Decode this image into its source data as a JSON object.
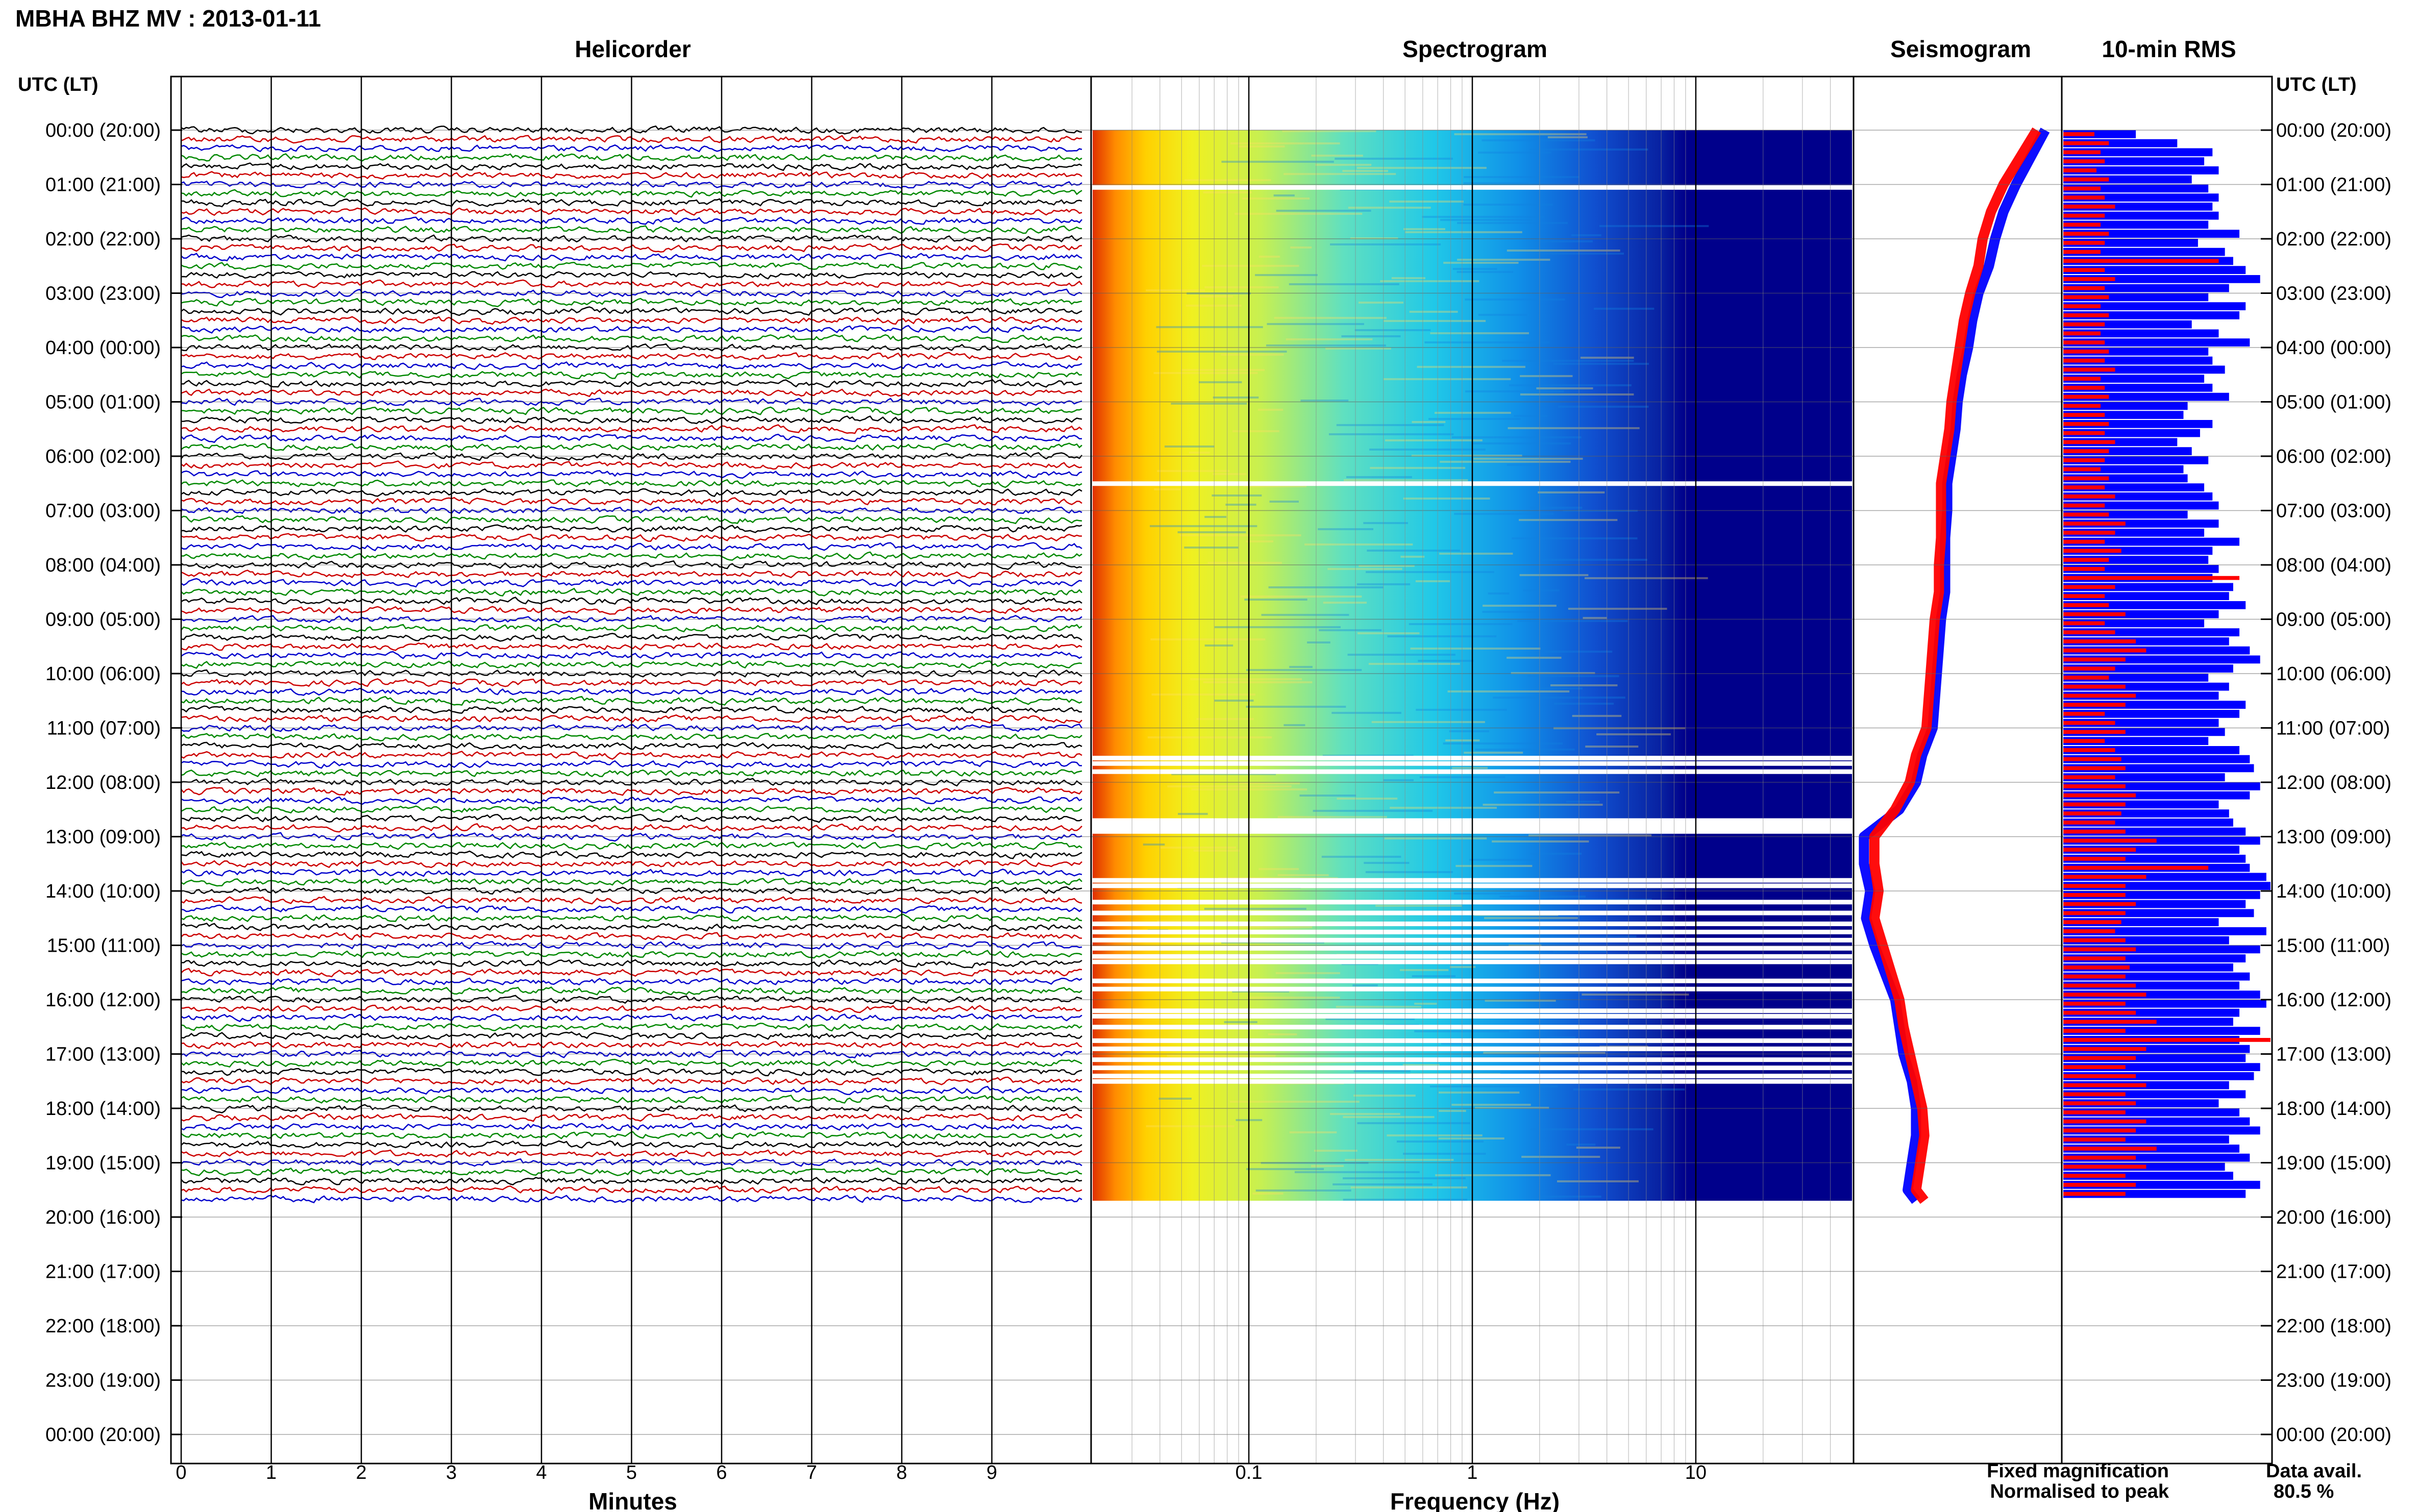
{
  "header": {
    "title": "MBHA BHZ MV : 2013-01-11"
  },
  "panels": {
    "helicorder": "Helicorder",
    "spectrogram": "Spectrogram",
    "seismogram": "Seismogram",
    "rms": "10-min RMS",
    "axis_left": "UTC (LT)",
    "axis_right": "UTC (LT)"
  },
  "hour_labels": [
    "00:00 (20:00)",
    "01:00 (21:00)",
    "02:00 (22:00)",
    "03:00 (23:00)",
    "04:00 (00:00)",
    "05:00 (01:00)",
    "06:00 (02:00)",
    "07:00 (03:00)",
    "08:00 (04:00)",
    "09:00 (05:00)",
    "10:00 (06:00)",
    "11:00 (07:00)",
    "12:00 (08:00)",
    "13:00 (09:00)",
    "14:00 (10:00)",
    "15:00 (11:00)",
    "16:00 (12:00)",
    "17:00 (13:00)",
    "18:00 (14:00)",
    "19:00 (15:00)",
    "20:00 (16:00)",
    "21:00 (17:00)",
    "22:00 (18:00)",
    "23:00 (19:00)",
    "00:00 (20:00)"
  ],
  "legend": {
    "fixed": "Fixed magnification",
    "normalised": "Normalised to peak",
    "data_avail_label": "Data avail.",
    "data_avail_value": "80.5 %"
  },
  "colors": {
    "fixed": "#0000ff",
    "normalised": "#ff0000",
    "trace_cycle": [
      "#000000",
      "#cc0000",
      "#0000cc",
      "#008800"
    ],
    "spectrogram_low": "#00008b",
    "spectrogram_high": "#ff4500"
  },
  "chart_data": [
    {
      "type": "line",
      "name": "helicorder",
      "title": "Helicorder",
      "xlabel": "Minutes",
      "ylabel": "UTC (LT)",
      "x_ticks": [
        "0",
        "1",
        "2",
        "3",
        "4",
        "5",
        "6",
        "7",
        "8",
        "9"
      ],
      "xlim": [
        0,
        10
      ],
      "hours_range": [
        0,
        24
      ],
      "lines_per_hour": 6,
      "data_end_hour": 19.7,
      "grid": true
    },
    {
      "type": "heatmap",
      "name": "spectrogram",
      "title": "Spectrogram",
      "xlabel": "Frequency (Hz)",
      "x_scale": "log",
      "x_ticks": [
        "0.1",
        "1",
        "10"
      ],
      "xlim": [
        0.02,
        50
      ],
      "data_end_hour": 19.7,
      "gaps_hours": [
        1.05,
        6.5,
        11.55,
        11.65,
        11.8,
        12.7,
        12.75,
        12.8,
        12.85,
        12.9,
        13.8,
        13.9,
        14.2,
        14.4,
        14.6,
        14.75,
        14.9,
        15.05,
        15.2,
        15.3,
        15.65,
        15.8,
        16.2,
        16.3,
        16.5,
        16.75,
        16.9,
        17.1,
        17.25,
        17.4,
        17.5
      ]
    },
    {
      "type": "line",
      "name": "seismogram",
      "title": "Seismogram",
      "series": [
        {
          "name": "Fixed magnification",
          "hours": [
            0,
            0.5,
            1,
            1.5,
            2,
            2.5,
            3,
            3.5,
            4,
            4.5,
            5,
            5.5,
            6,
            6.5,
            7,
            7.5,
            8,
            8.5,
            9,
            9.5,
            10,
            10.5,
            11,
            11.5,
            12,
            12.5,
            13,
            13.5,
            14,
            14.5,
            15,
            15.5,
            16,
            16.5,
            17,
            17.5,
            18,
            18.5,
            19,
            19.5,
            19.7
          ],
          "values": [
            0.92,
            0.85,
            0.78,
            0.72,
            0.68,
            0.65,
            0.6,
            0.57,
            0.55,
            0.52,
            0.5,
            0.49,
            0.47,
            0.45,
            0.45,
            0.44,
            0.44,
            0.44,
            0.42,
            0.41,
            0.4,
            0.39,
            0.38,
            0.33,
            0.3,
            0.22,
            0.05,
            0.05,
            0.08,
            0.06,
            0.1,
            0.15,
            0.2,
            0.22,
            0.24,
            0.28,
            0.3,
            0.3,
            0.28,
            0.26,
            0.3
          ]
        },
        {
          "name": "Normalised to peak",
          "hours": [
            0,
            0.5,
            1,
            1.5,
            2,
            2.5,
            3,
            3.5,
            4,
            4.5,
            5,
            5.5,
            6,
            6.5,
            7,
            7.5,
            8,
            8.5,
            9,
            9.5,
            10,
            10.5,
            11,
            11.5,
            12,
            12.5,
            13,
            13.5,
            14,
            14.5,
            15,
            15.5,
            16,
            16.5,
            17,
            17.5,
            18,
            18.5,
            19,
            19.5,
            19.7
          ],
          "values": [
            0.88,
            0.8,
            0.72,
            0.66,
            0.62,
            0.6,
            0.56,
            0.53,
            0.51,
            0.49,
            0.47,
            0.46,
            0.44,
            0.42,
            0.42,
            0.42,
            0.41,
            0.41,
            0.39,
            0.38,
            0.37,
            0.36,
            0.35,
            0.3,
            0.27,
            0.2,
            0.1,
            0.1,
            0.12,
            0.1,
            0.14,
            0.18,
            0.22,
            0.24,
            0.27,
            0.3,
            0.33,
            0.34,
            0.32,
            0.3,
            0.34
          ]
        }
      ],
      "grid": true
    },
    {
      "type": "bar",
      "name": "rms",
      "title": "10-min RMS",
      "series": [
        {
          "name": "Fixed magnification",
          "values": [
            0.35,
            0.55,
            0.72,
            0.68,
            0.75,
            0.62,
            0.7,
            0.75,
            0.72,
            0.75,
            0.7,
            0.85,
            0.65,
            0.78,
            0.82,
            0.88,
            0.95,
            0.8,
            0.7,
            0.88,
            0.85,
            0.62,
            0.75,
            0.9,
            0.7,
            0.72,
            0.78,
            0.68,
            0.72,
            0.8,
            0.6,
            0.58,
            0.72,
            0.66,
            0.55,
            0.62,
            0.7,
            0.58,
            0.6,
            0.68,
            0.72,
            0.75,
            0.6,
            0.75,
            0.68,
            0.85,
            0.72,
            0.7,
            0.75,
            0.72,
            0.82,
            0.8,
            0.88,
            0.75,
            0.68,
            0.85,
            0.8,
            0.9,
            0.95,
            0.82,
            0.7,
            0.8,
            0.75,
            0.88,
            0.85,
            0.75,
            0.78,
            0.7,
            0.85,
            0.9,
            0.92,
            0.78,
            0.95,
            0.9,
            0.75,
            0.8,
            0.82,
            0.88,
            0.95,
            0.85,
            0.88,
            0.9,
            0.98,
            1.0,
            0.95,
            0.88,
            0.92,
            0.75,
            0.98,
            0.8,
            0.95,
            0.88,
            0.82,
            0.9,
            0.85,
            0.95,
            0.98,
            0.85,
            0.82,
            0.95,
            0.85,
            0.9,
            0.88,
            0.95,
            0.92,
            0.8,
            0.88,
            0.75,
            0.85,
            0.9,
            0.95,
            0.8,
            0.85,
            0.9,
            0.78,
            0.82,
            0.95,
            0.88
          ]
        },
        {
          "name": "Normalised to peak",
          "values": [
            0.15,
            0.22,
            0.18,
            0.2,
            0.16,
            0.22,
            0.18,
            0.2,
            0.25,
            0.2,
            0.18,
            0.22,
            0.2,
            0.18,
            0.75,
            0.2,
            0.25,
            0.2,
            0.22,
            0.18,
            0.22,
            0.2,
            0.18,
            0.2,
            0.22,
            0.2,
            0.25,
            0.18,
            0.2,
            0.22,
            0.18,
            0.2,
            0.22,
            0.2,
            0.25,
            0.22,
            0.2,
            0.18,
            0.22,
            0.2,
            0.25,
            0.2,
            0.22,
            0.3,
            0.25,
            0.2,
            0.28,
            0.22,
            0.2,
            0.85,
            0.25,
            0.2,
            0.22,
            0.3,
            0.2,
            0.25,
            0.35,
            0.4,
            0.3,
            0.25,
            0.22,
            0.3,
            0.35,
            0.3,
            0.2,
            0.25,
            0.3,
            0.2,
            0.25,
            0.28,
            0.3,
            0.25,
            0.3,
            0.35,
            0.3,
            0.28,
            0.25,
            0.3,
            0.45,
            0.35,
            0.3,
            0.7,
            0.4,
            0.3,
            0.3,
            0.35,
            0.3,
            0.28,
            0.25,
            0.3,
            0.35,
            0.3,
            0.32,
            0.3,
            0.35,
            0.4,
            0.3,
            0.35,
            0.45,
            0.3,
            1.0,
            0.4,
            0.35,
            0.3,
            0.35,
            0.4,
            0.3,
            0.35,
            0.3,
            0.4,
            0.35,
            0.3,
            0.45,
            0.35,
            0.4,
            0.3,
            0.35,
            0.3
          ]
        }
      ],
      "grid": true
    }
  ]
}
